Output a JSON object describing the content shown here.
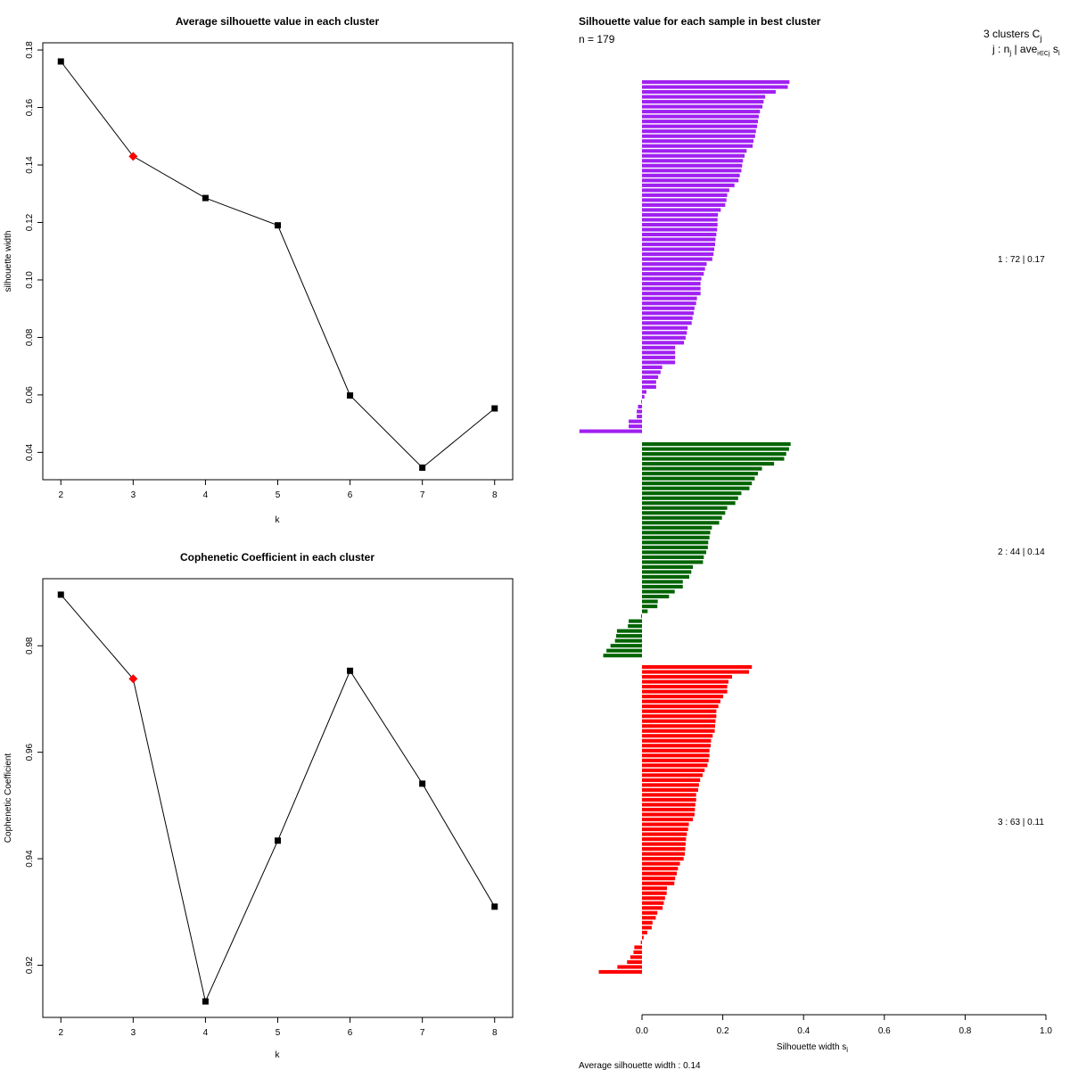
{
  "panel1": {
    "title": "Average silhouette value in each cluster",
    "xlabel": "k",
    "ylabel": "silhouette width",
    "xticks": [
      "2",
      "3",
      "4",
      "5",
      "6",
      "7",
      "8"
    ],
    "yticks": [
      "0.04",
      "0.06",
      "0.08",
      "0.10",
      "0.12",
      "0.14",
      "0.16",
      "0.18"
    ]
  },
  "panel2": {
    "title": "Cophenetic Coefficient in each cluster",
    "xlabel": "k",
    "ylabel": "Cophenetic Coefficient",
    "xticks": [
      "2",
      "3",
      "4",
      "5",
      "6",
      "7",
      "8"
    ],
    "yticks": [
      "0.92",
      "0.94",
      "0.96",
      "0.98"
    ]
  },
  "panel3": {
    "title": "Silhouette value for each sample in best cluster",
    "n_label": "n = 179",
    "legend_line1": "3  clusters  C",
    "legend_line1_sub": "j",
    "legend_line2": "j :  n",
    "legend_line2_sub1": "j",
    "legend_line2_mid": " | ave",
    "legend_line2_sub2": "i∈Cj",
    "legend_line2_end": " s",
    "legend_line2_sub3": "i",
    "xlabel": "Silhouette width s",
    "xlabel_sub": "i",
    "xticks": [
      "0.0",
      "0.2",
      "0.4",
      "0.6",
      "0.8",
      "1.0"
    ],
    "avg_label": "Average silhouette width :  0.14",
    "cluster_labels": [
      "1 :  72  |  0.17",
      "2 :  44  |  0.14",
      "3 :  63  |  0.11"
    ]
  },
  "colors": {
    "cluster1": "#a020f0",
    "cluster2": "#006400",
    "cluster3": "#ff0000",
    "highlight": "#ff0000",
    "line": "#000000"
  },
  "chart_data": [
    {
      "type": "line",
      "title": "Average silhouette value in each cluster",
      "xlabel": "k",
      "ylabel": "silhouette width",
      "x": [
        2,
        3,
        4,
        5,
        6,
        7,
        8
      ],
      "y": [
        0.176,
        0.143,
        0.1285,
        0.119,
        0.0598,
        0.0347,
        0.0553
      ],
      "highlight_x": 3,
      "xlim": [
        1.75,
        8.25
      ],
      "ylim": [
        0.0305,
        0.1825
      ]
    },
    {
      "type": "line",
      "title": "Cophenetic Coefficient in each cluster",
      "xlabel": "k",
      "ylabel": "Cophenetic Coefficient",
      "x": [
        2,
        3,
        4,
        5,
        6,
        7,
        8
      ],
      "y": [
        0.9896,
        0.9738,
        0.9132,
        0.9434,
        0.9753,
        0.9541,
        0.931
      ],
      "highlight_x": 3,
      "xlim": [
        1.75,
        8.25
      ],
      "ylim": [
        0.9102,
        0.9926
      ]
    },
    {
      "type": "bar",
      "orientation": "horizontal",
      "title": "Silhouette value for each sample in best cluster",
      "xlabel": "Silhouette width si",
      "xlim": [
        -0.155,
        1.0
      ],
      "n": 179,
      "average": 0.14,
      "clusters": [
        {
          "id": 1,
          "size": 72,
          "avg": 0.17,
          "values": [
            0.365,
            0.361,
            0.331,
            0.305,
            0.301,
            0.298,
            0.292,
            0.289,
            0.287,
            0.285,
            0.282,
            0.28,
            0.276,
            0.274,
            0.259,
            0.254,
            0.25,
            0.248,
            0.246,
            0.242,
            0.239,
            0.229,
            0.216,
            0.211,
            0.209,
            0.206,
            0.195,
            0.188,
            0.187,
            0.187,
            0.186,
            0.184,
            0.182,
            0.181,
            0.179,
            0.177,
            0.174,
            0.16,
            0.156,
            0.153,
            0.147,
            0.145,
            0.145,
            0.145,
            0.136,
            0.134,
            0.13,
            0.128,
            0.125,
            0.123,
            0.113,
            0.111,
            0.108,
            0.104,
            0.082,
            0.082,
            0.082,
            0.082,
            0.05,
            0.046,
            0.04,
            0.035,
            0.035,
            0.011,
            0.006,
            -0.002,
            -0.01,
            -0.013,
            -0.013,
            -0.033,
            -0.033,
            -0.155
          ]
        },
        {
          "id": 2,
          "size": 44,
          "avg": 0.14,
          "values": [
            0.368,
            0.364,
            0.357,
            0.352,
            0.327,
            0.297,
            0.287,
            0.279,
            0.272,
            0.266,
            0.246,
            0.238,
            0.231,
            0.211,
            0.206,
            0.198,
            0.191,
            0.173,
            0.169,
            0.167,
            0.164,
            0.163,
            0.159,
            0.153,
            0.151,
            0.126,
            0.122,
            0.117,
            0.101,
            0.101,
            0.081,
            0.067,
            0.039,
            0.038,
            0.014,
            -0.002,
            -0.033,
            -0.035,
            -0.062,
            -0.064,
            -0.067,
            -0.078,
            -0.088,
            -0.096
          ]
        },
        {
          "id": 3,
          "size": 63,
          "avg": 0.11,
          "values": [
            0.272,
            0.265,
            0.223,
            0.214,
            0.211,
            0.211,
            0.201,
            0.194,
            0.189,
            0.184,
            0.184,
            0.182,
            0.181,
            0.18,
            0.175,
            0.171,
            0.17,
            0.167,
            0.167,
            0.165,
            0.162,
            0.155,
            0.15,
            0.144,
            0.141,
            0.139,
            0.134,
            0.134,
            0.132,
            0.131,
            0.13,
            0.126,
            0.116,
            0.114,
            0.111,
            0.109,
            0.108,
            0.107,
            0.106,
            0.103,
            0.094,
            0.089,
            0.086,
            0.082,
            0.08,
            0.062,
            0.061,
            0.057,
            0.054,
            0.051,
            0.038,
            0.034,
            0.026,
            0.024,
            0.013,
            0.004,
            -0.003,
            -0.019,
            -0.021,
            -0.029,
            -0.037,
            -0.061,
            -0.107
          ]
        }
      ]
    }
  ]
}
